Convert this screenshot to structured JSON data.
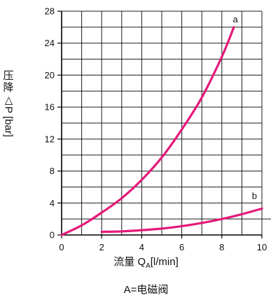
{
  "chart_data": {
    "type": "line",
    "title": "",
    "xlabel_main": "流量 Q",
    "xlabel_sub": "A",
    "xlabel_unit": "[l/min]",
    "ylabel_cjk": "压降",
    "ylabel_rot": "△P [bar]",
    "note": "A=电磁阀",
    "xlim": [
      0,
      10
    ],
    "ylim": [
      0,
      28
    ],
    "x_ticks": [
      "0",
      "2",
      "4",
      "6",
      "8",
      "10"
    ],
    "y_ticks": [
      "0",
      "4",
      "8",
      "12",
      "16",
      "20",
      "24",
      "28"
    ],
    "grid": true,
    "series": [
      {
        "name": "a",
        "x": [
          0,
          1,
          2,
          3,
          4,
          5,
          6,
          7,
          8,
          8.6
        ],
        "y": [
          0,
          1.2,
          2.8,
          4.6,
          6.9,
          9.7,
          13.2,
          17.2,
          22.3,
          26
        ]
      },
      {
        "name": "b",
        "x": [
          2,
          3,
          4,
          5,
          6,
          7,
          8,
          9,
          10
        ],
        "y": [
          0.4,
          0.45,
          0.6,
          0.8,
          1.1,
          1.5,
          2.0,
          2.6,
          3.3
        ]
      }
    ],
    "series_color": "#e4197a",
    "grid_color": "#1a1a1a"
  }
}
